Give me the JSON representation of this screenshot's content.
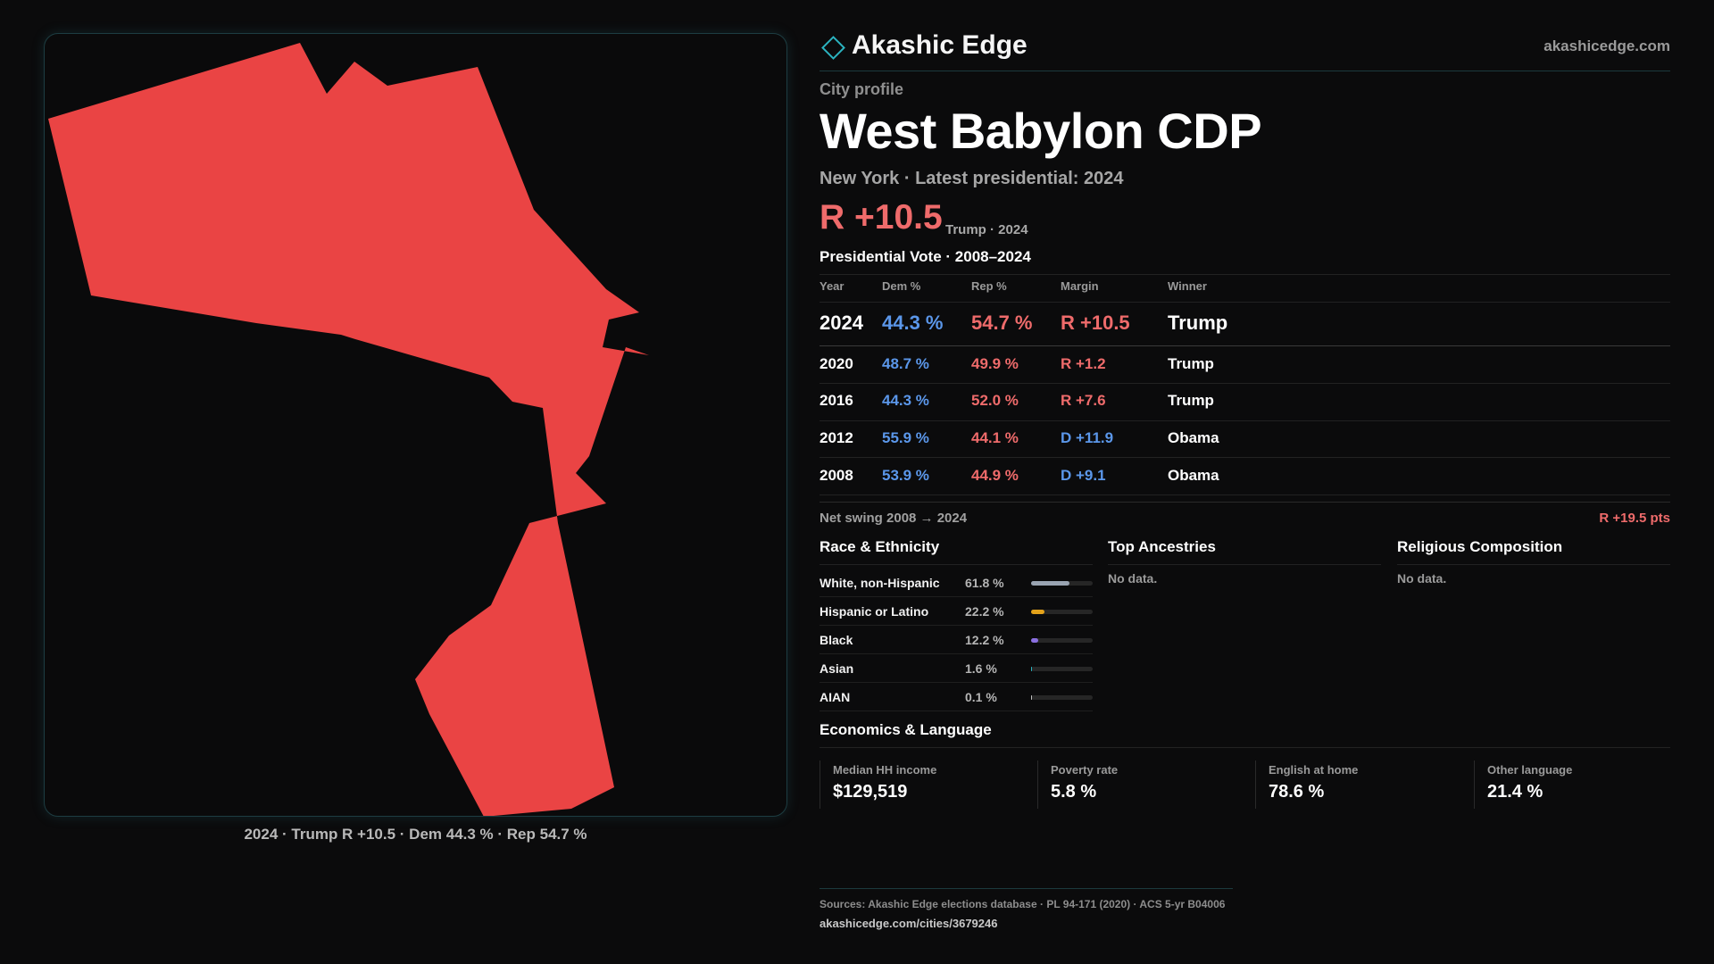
{
  "brand": {
    "name": "Akashic Edge",
    "url": "akashicedge.com"
  },
  "profile": {
    "eyebrow": "City profile",
    "title": "West Babylon CDP",
    "subline": "New York · Latest presidential: 2024",
    "margin": "R +10.5",
    "margin_note": "Trump · 2024"
  },
  "map": {
    "fill_color": "#ea4444",
    "caption": "2024 · Trump R +10.5 · Dem 44.3 % · Rep 54.7 %"
  },
  "vote": {
    "title": "Presidential Vote · 2008–2024",
    "headers": {
      "year": "Year",
      "dem": "Dem %",
      "rep": "Rep %",
      "margin": "Margin",
      "winner": "Winner"
    },
    "rows": [
      {
        "year": "2024",
        "dem": "44.3 %",
        "rep": "54.7 %",
        "margin": "R +10.5",
        "winner": "Trump"
      },
      {
        "year": "2020",
        "dem": "48.7 %",
        "rep": "49.9 %",
        "margin": "R +1.2",
        "winner": "Trump"
      },
      {
        "year": "2016",
        "dem": "44.3 %",
        "rep": "52.0 %",
        "margin": "R +7.6",
        "winner": "Trump"
      },
      {
        "year": "2012",
        "dem": "55.9 %",
        "rep": "44.1 %",
        "margin": "D +11.9",
        "winner": "Obama"
      },
      {
        "year": "2008",
        "dem": "53.9 %",
        "rep": "44.9 %",
        "margin": "D +9.1",
        "winner": "Obama"
      }
    ],
    "swing_label": "Net swing 2008 → 2024",
    "swing_value": "R +19.5 pts"
  },
  "race": {
    "title": "Race & Ethnicity",
    "rows": [
      {
        "label": "White, non-Hispanic",
        "pct": "61.8 %",
        "value": 61.8,
        "color": "#9aa4b2"
      },
      {
        "label": "Hispanic or Latino",
        "pct": "22.2 %",
        "value": 22.2,
        "color": "#e3a21a"
      },
      {
        "label": "Black",
        "pct": "12.2 %",
        "value": 12.2,
        "color": "#8a6fe0"
      },
      {
        "label": "Asian",
        "pct": "1.6 %",
        "value": 1.6,
        "color": "#2bb3c0"
      },
      {
        "label": "AIAN",
        "pct": "0.1 %",
        "value": 0.1,
        "color": "#c0c0c0"
      }
    ]
  },
  "ancestries": {
    "title": "Top Ancestries",
    "empty": "No data."
  },
  "religion": {
    "title": "Religious Composition",
    "empty": "No data."
  },
  "economics": {
    "title": "Economics & Language",
    "cards": [
      {
        "label": "Median HH income",
        "value": "$129,519"
      },
      {
        "label": "Poverty rate",
        "value": "5.8 %"
      },
      {
        "label": "English at home",
        "value": "78.6 %"
      },
      {
        "label": "Other language",
        "value": "21.4 %"
      }
    ]
  },
  "sources": {
    "text": "Sources: Akashic Edge elections database · PL 94-171 (2020) · ACS 5-yr B04006",
    "url": "akashicedge.com/cities/3679246"
  }
}
